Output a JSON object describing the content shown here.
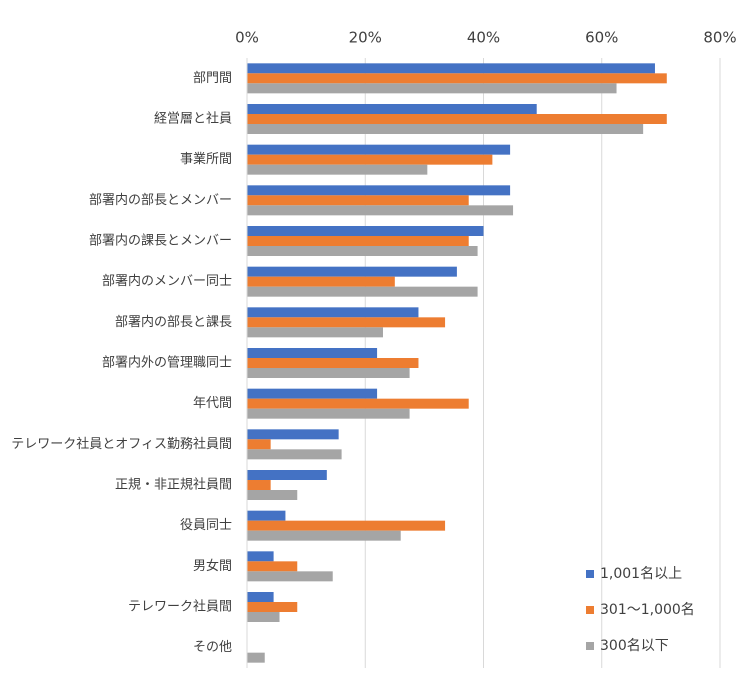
{
  "chart_data": {
    "type": "bar",
    "orientation": "horizontal",
    "categories": [
      "部門間",
      "経営層と社員",
      "事業所間",
      "部署内の部長とメンバー",
      "部署内の課長とメンバー",
      "部署内のメンバー同士",
      "部署内の部長と課長",
      "部署内外の管理職同士",
      "年代間",
      "テレワーク社員とオフィス勤務社員間",
      "正規・非正規社員間",
      "役員同士",
      "男女間",
      "テレワーク社員間",
      "その他"
    ],
    "series": [
      {
        "name": "1,001名以上",
        "color": "#4472c4",
        "values": [
          69,
          49,
          44.5,
          44.5,
          40,
          35.5,
          29,
          22,
          22,
          15.5,
          13.5,
          6.5,
          4.5,
          4.5,
          0
        ]
      },
      {
        "name": "301～1,000名",
        "color": "#ed7d31",
        "values": [
          71,
          71,
          41.5,
          37.5,
          37.5,
          25,
          33.5,
          29,
          37.5,
          4,
          4,
          33.5,
          8.5,
          8.5,
          0
        ]
      },
      {
        "name": "300名以下",
        "color": "#a5a5a5",
        "values": [
          62.5,
          67,
          30.5,
          45,
          39,
          39,
          23,
          27.5,
          27.5,
          16,
          8.5,
          26,
          14.5,
          5.5,
          3
        ]
      }
    ],
    "xlim": [
      0,
      80
    ],
    "xticks": [
      {
        "value": 0,
        "label": "0%"
      },
      {
        "value": 20,
        "label": "20%"
      },
      {
        "value": 40,
        "label": "40%"
      },
      {
        "value": 60,
        "label": "60%"
      },
      {
        "value": 80,
        "label": "80%"
      }
    ],
    "grid": true,
    "legend": "lower right"
  }
}
